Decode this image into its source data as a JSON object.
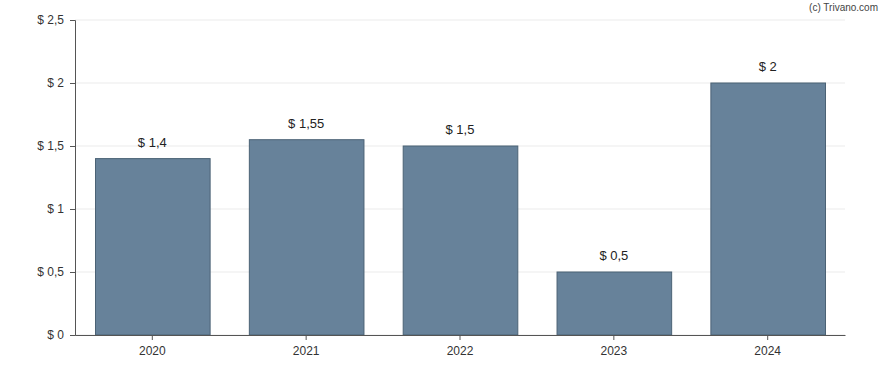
{
  "chart_data": {
    "type": "bar",
    "categories": [
      "2020",
      "2021",
      "2022",
      "2023",
      "2024"
    ],
    "values": [
      1.4,
      1.55,
      1.5,
      0.5,
      2
    ],
    "value_labels": [
      "$ 1,4",
      "$ 1,55",
      "$ 1,5",
      "$ 0,5",
      "$ 2"
    ],
    "data_labels": true,
    "color": "#67829a",
    "ylim": [
      0,
      2.5
    ],
    "yticks": [
      {
        "value": 0,
        "label": "$ 0"
      },
      {
        "value": 0.5,
        "label": "$ 0,5"
      },
      {
        "value": 1,
        "label": "$ 1"
      },
      {
        "value": 1.5,
        "label": "$ 1,5"
      },
      {
        "value": 2,
        "label": "$ 2"
      },
      {
        "value": 2.5,
        "label": "$ 2,5"
      }
    ],
    "grid": true,
    "annotations": [
      "(c) Trivano.com"
    ]
  }
}
